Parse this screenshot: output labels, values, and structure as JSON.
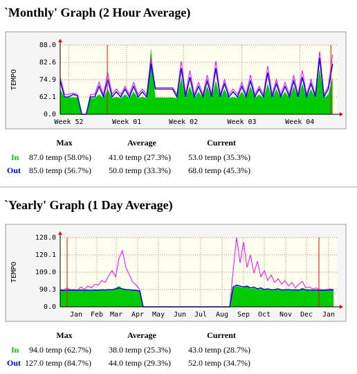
{
  "chart_data": [
    {
      "type": "area",
      "title": "`Monthly' Graph (2 Hour Average)",
      "y_label": "TEMPO",
      "xlim": [
        0,
        64
      ],
      "xticks": [
        {
          "value": 2,
          "label": "Week 52"
        },
        {
          "value": 15.4,
          "label": "Week 01"
        },
        {
          "value": 28.5,
          "label": "Week 02"
        },
        {
          "value": 42,
          "label": "Week 03"
        },
        {
          "value": 55.4,
          "label": "Week 04"
        }
      ],
      "ylim": [
        0,
        88
      ],
      "yticks": [
        {
          "value": 0,
          "label": "0.0"
        },
        62.1,
        74.9,
        82.6,
        {
          "value": 88,
          "label": "88.0"
        }
      ],
      "grid": true,
      "markers": [
        10.9,
        62.6
      ],
      "marker_color": "#ff0000",
      "series": [
        {
          "name": "In",
          "color": "#00cc00",
          "fill": true,
          "values": [
            68,
            60,
            60,
            61,
            60,
            0,
            0,
            58,
            58,
            64,
            58,
            68,
            58,
            62,
            58,
            64,
            58,
            66,
            58,
            62,
            58,
            87,
            60,
            60,
            60,
            60,
            60,
            58,
            76,
            58,
            70,
            58,
            66,
            58,
            70,
            58,
            74,
            58,
            68,
            58,
            62,
            58,
            66,
            58,
            70,
            58,
            64,
            58,
            72,
            58,
            68,
            58,
            66,
            58,
            70,
            58,
            72,
            58,
            68,
            58,
            80,
            58,
            64,
            76
          ]
        },
        {
          "name": "Out",
          "color": "#0000ff",
          "fill": false,
          "values": [
            74,
            62,
            62,
            64,
            63,
            0,
            0,
            62,
            62,
            70,
            62,
            75,
            62,
            66,
            62,
            68,
            62,
            70,
            62,
            66,
            62,
            82,
            68,
            68,
            68,
            68,
            68,
            62,
            80,
            62,
            76,
            62,
            70,
            62,
            74,
            62,
            80,
            62,
            72,
            62,
            66,
            62,
            70,
            62,
            74,
            62,
            68,
            62,
            78,
            62,
            72,
            62,
            70,
            62,
            74,
            62,
            76,
            62,
            72,
            62,
            84,
            62,
            68,
            82
          ]
        },
        {
          "color": "#ff00ff",
          "fill": false,
          "values": [
            76,
            64,
            64,
            65,
            64,
            0,
            0,
            64,
            64,
            73,
            64,
            78,
            64,
            68,
            64,
            70,
            64,
            73,
            64,
            68,
            64,
            84,
            69,
            69,
            69,
            69,
            69,
            64,
            83,
            64,
            79,
            64,
            73,
            64,
            77,
            64,
            83,
            64,
            75,
            64,
            68,
            64,
            73,
            64,
            77,
            64,
            70,
            64,
            81,
            64,
            75,
            64,
            73,
            64,
            77,
            64,
            79,
            64,
            75,
            64,
            86,
            64,
            70,
            85
          ]
        }
      ]
    },
    {
      "type": "area",
      "title": "`Yearly' Graph (1 Day Average)",
      "y_label": "TEMPO",
      "xlim": [
        0,
        80
      ],
      "xticks": [
        {
          "value": 4.6,
          "label": "Jan"
        },
        {
          "value": 10.6,
          "label": "Feb"
        },
        {
          "value": 16.2,
          "label": "Mar"
        },
        {
          "value": 22.4,
          "label": "Apr"
        },
        {
          "value": 28.4,
          "label": "May"
        },
        {
          "value": 34.6,
          "label": "Jun"
        },
        {
          "value": 40.6,
          "label": "Jul"
        },
        {
          "value": 46.8,
          "label": "Aug"
        },
        {
          "value": 53,
          "label": "Sep"
        },
        {
          "value": 59,
          "label": "Oct"
        },
        {
          "value": 65.2,
          "label": "Nov"
        },
        {
          "value": 71.2,
          "label": "Dec"
        },
        {
          "value": 77.6,
          "label": "Jan"
        }
      ],
      "ylim": [
        0,
        128
      ],
      "yticks": [
        {
          "value": 0,
          "label": "0.0"
        },
        90.3,
        {
          "value": 109,
          "label": "109.0"
        },
        120.1,
        {
          "value": 128,
          "label": "128.0"
        }
      ],
      "grid": true,
      "markers": [
        2,
        74.8
      ],
      "marker_color": "#ff0000",
      "series": [
        {
          "name": "In",
          "color": "#00cc00",
          "fill": true,
          "values": [
            86,
            84,
            88,
            85,
            86,
            84,
            87,
            85,
            86,
            84,
            87,
            86,
            88,
            87,
            89,
            88,
            92,
            94,
            91,
            90,
            88,
            86,
            84,
            80,
            0,
            0,
            0,
            0,
            0,
            0,
            0,
            0,
            0,
            0,
            0,
            0,
            0,
            0,
            0,
            0,
            0,
            0,
            0,
            0,
            0,
            0,
            0,
            0,
            0,
            0,
            92,
            94,
            93,
            92,
            94,
            91,
            92,
            90,
            91,
            89,
            90,
            88,
            89,
            90,
            87,
            88,
            89,
            87,
            88,
            86,
            92,
            88,
            87,
            86,
            87,
            86,
            85,
            86,
            87,
            86
          ]
        },
        {
          "name": "Out",
          "color": "#0000ff",
          "fill": false,
          "values": [
            87,
            85,
            88,
            86,
            87,
            86,
            88,
            86,
            87,
            86,
            88,
            87,
            89,
            88,
            90,
            89,
            91,
            92,
            91,
            90,
            89,
            87,
            86,
            82,
            0,
            0,
            0,
            0,
            0,
            0,
            0,
            0,
            0,
            0,
            0,
            0,
            0,
            0,
            0,
            0,
            0,
            0,
            0,
            0,
            0,
            0,
            0,
            0,
            0,
            0,
            93,
            95,
            94,
            93,
            94,
            92,
            93,
            91,
            92,
            90,
            91,
            89,
            90,
            91,
            88,
            89,
            90,
            88,
            89,
            87,
            91,
            88,
            88,
            87,
            88,
            87,
            86,
            87,
            88,
            87
          ]
        },
        {
          "color": "#ff00ff",
          "fill": false,
          "values": [
            90,
            88,
            92,
            89,
            90,
            88,
            93,
            90,
            94,
            92,
            96,
            95,
            100,
            98,
            105,
            110,
            104,
            118,
            122,
            112,
            106,
            98,
            95,
            88,
            0,
            0,
            0,
            0,
            0,
            0,
            0,
            0,
            0,
            0,
            0,
            0,
            0,
            0,
            0,
            0,
            0,
            0,
            0,
            0,
            0,
            0,
            0,
            0,
            0,
            0,
            110,
            128,
            115,
            126,
            112,
            120,
            108,
            116,
            104,
            110,
            100,
            106,
            98,
            102,
            96,
            100,
            94,
            98,
            92,
            96,
            99,
            92,
            93,
            91,
            92,
            90,
            89,
            90,
            91,
            90
          ]
        }
      ]
    }
  ],
  "stats": [
    {
      "columns": [
        "Max",
        "Average",
        "Current"
      ],
      "rows": [
        [
          "87.0 temp (58.0%)",
          "41.0 temp (27.3%)",
          "53.0 temp (35.3%)"
        ],
        [
          "85.0 temp (56.7%)",
          "50.0 temp (33.3%)",
          "68.0 temp (45.3%)"
        ]
      ]
    },
    {
      "columns": [
        "Max",
        "Average",
        "Current"
      ],
      "rows": [
        [
          "94.0 temp (62.7%)",
          "38.0 temp (25.3%)",
          "43.0 temp (28.7%)"
        ],
        [
          "127.0 temp (84.7%)",
          "44.0 temp (29.3%)",
          "52.0 temp (34.7%)"
        ]
      ]
    }
  ]
}
